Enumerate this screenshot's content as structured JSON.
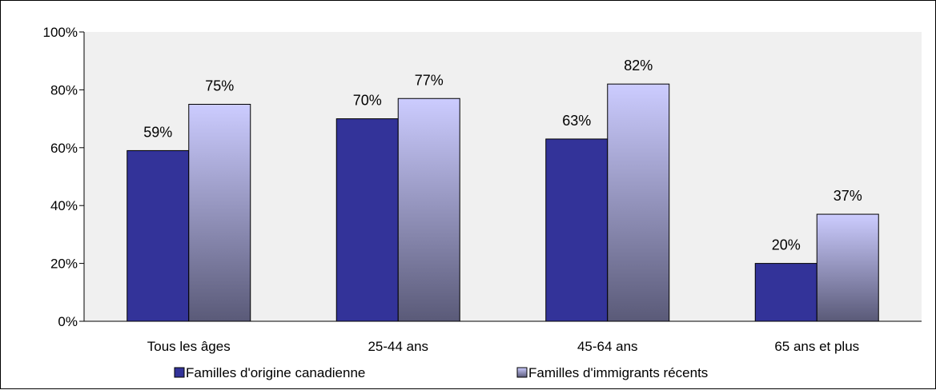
{
  "chart_data": {
    "type": "bar",
    "categories": [
      "Tous les âges",
      "25-44 ans",
      "45-64 ans",
      "65 ans et plus"
    ],
    "series": [
      {
        "name": "Familles d'origine canadienne",
        "values": [
          59,
          70,
          63,
          20
        ],
        "labels": [
          "59%",
          "70%",
          "63%",
          "20%"
        ],
        "color": "#333399"
      },
      {
        "name": "Familles d'immigrants récents",
        "values": [
          75,
          77,
          82,
          37
        ],
        "labels": [
          "75%",
          "77%",
          "82%",
          "37%"
        ],
        "color_top": "#ccccff",
        "color_bottom": "#5a5a78"
      }
    ],
    "y_ticks": [
      "0%",
      "20%",
      "40%",
      "60%",
      "80%",
      "100%"
    ],
    "ylim": [
      0,
      100
    ],
    "grid": false,
    "legend_position": "bottom",
    "plot_background": "#f0f0f0"
  }
}
